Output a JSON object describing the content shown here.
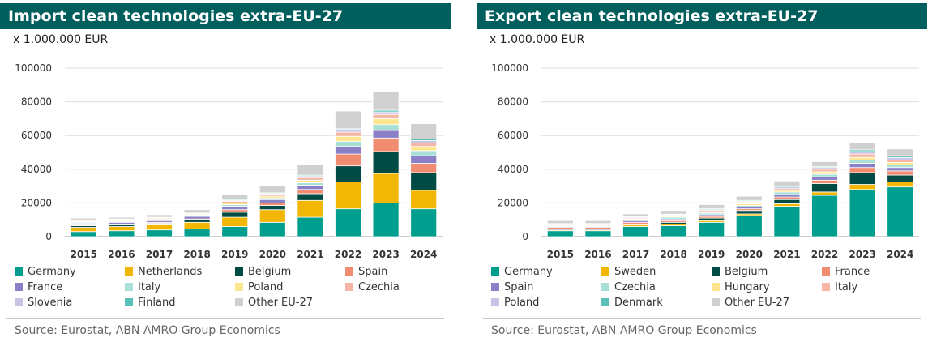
{
  "chart_data": [
    {
      "type": "bar",
      "stacked": true,
      "title": "Import clean technologies extra-EU-27",
      "unit": "x 1.000.000 EUR",
      "source": "Source: Eurostat, ABN AMRO Group Economics",
      "ylim": [
        0,
        100000
      ],
      "yticks": [
        0,
        20000,
        40000,
        60000,
        80000,
        100000
      ],
      "grid": true,
      "legend_position": "bottom",
      "categories": [
        "2015",
        "2016",
        "2017",
        "2018",
        "2019",
        "2020",
        "2021",
        "2022",
        "2023",
        "2024"
      ],
      "series": [
        {
          "name": "Germany",
          "color": "#009e8e",
          "values": [
            3000,
            3500,
            4000,
            4500,
            6000,
            8500,
            11500,
            16500,
            20000,
            16500
          ]
        },
        {
          "name": "Netherlands",
          "color": "#f2b705",
          "values": [
            2500,
            2500,
            3000,
            4000,
            5500,
            7500,
            10000,
            16000,
            17500,
            11000
          ]
        },
        {
          "name": "Belgium",
          "color": "#004c45",
          "values": [
            1000,
            1000,
            1000,
            1500,
            3000,
            2500,
            4000,
            9500,
            13000,
            10500
          ]
        },
        {
          "name": "Spain",
          "color": "#f28c70",
          "values": [
            500,
            500,
            500,
            500,
            1500,
            1500,
            2500,
            7000,
            8000,
            5500
          ]
        },
        {
          "name": "France",
          "color": "#8b7fc7",
          "values": [
            1000,
            1000,
            1000,
            1500,
            2000,
            2000,
            2500,
            4500,
            4500,
            4500
          ]
        },
        {
          "name": "Italy",
          "color": "#a8e0d8",
          "values": [
            500,
            500,
            500,
            500,
            1000,
            1000,
            1500,
            3000,
            3500,
            3000
          ]
        },
        {
          "name": "Poland",
          "color": "#ffe58f",
          "values": [
            500,
            500,
            500,
            500,
            1000,
            1000,
            1500,
            3000,
            3500,
            2500
          ]
        },
        {
          "name": "Czechia",
          "color": "#f4b6a6",
          "values": [
            500,
            500,
            500,
            500,
            1000,
            1000,
            1500,
            2500,
            2500,
            2000
          ]
        },
        {
          "name": "Slovenia",
          "color": "#c9c3e6",
          "values": [
            300,
            300,
            300,
            300,
            500,
            500,
            1000,
            1500,
            1500,
            1500
          ]
        },
        {
          "name": "Finland",
          "color": "#5ac0b8",
          "values": [
            200,
            200,
            200,
            200,
            500,
            500,
            500,
            500,
            1000,
            1000
          ]
        },
        {
          "name": "Other EU-27",
          "color": "#d0d0d0",
          "values": [
            1000,
            1000,
            1500,
            2000,
            3000,
            4500,
            6500,
            10500,
            11000,
            9000
          ]
        }
      ]
    },
    {
      "type": "bar",
      "stacked": true,
      "title": "Export clean technologies extra-EU-27",
      "unit": "x 1.000.000 EUR",
      "source": "Source: Eurostat, ABN AMRO Group Economics",
      "ylim": [
        0,
        100000
      ],
      "yticks": [
        0,
        20000,
        40000,
        60000,
        80000,
        100000
      ],
      "grid": true,
      "legend_position": "bottom",
      "categories": [
        "2015",
        "2016",
        "2017",
        "2018",
        "2019",
        "2020",
        "2021",
        "2022",
        "2023",
        "2024"
      ],
      "series": [
        {
          "name": "Germany",
          "color": "#009e8e",
          "values": [
            3500,
            3500,
            6000,
            6500,
            8500,
            12500,
            18000,
            24500,
            28000,
            29500
          ]
        },
        {
          "name": "Sweden",
          "color": "#f2b705",
          "values": [
            500,
            500,
            1000,
            1000,
            1000,
            1000,
            1500,
            2000,
            3000,
            3000
          ]
        },
        {
          "name": "Belgium",
          "color": "#004c45",
          "values": [
            500,
            500,
            500,
            1000,
            1500,
            2000,
            2500,
            5000,
            7000,
            4000
          ]
        },
        {
          "name": "France",
          "color": "#f28c70",
          "values": [
            1000,
            1000,
            1000,
            1000,
            1000,
            1000,
            1500,
            2000,
            3000,
            2500
          ]
        },
        {
          "name": "Spain",
          "color": "#8b7fc7",
          "values": [
            500,
            500,
            1000,
            1000,
            1000,
            1000,
            1500,
            2000,
            2500,
            2000
          ]
        },
        {
          "name": "Czechia",
          "color": "#a8e0d8",
          "values": [
            500,
            500,
            500,
            1000,
            1000,
            1000,
            1500,
            1500,
            2000,
            1500
          ]
        },
        {
          "name": "Hungary",
          "color": "#ffe58f",
          "values": [
            300,
            300,
            500,
            500,
            500,
            1000,
            1000,
            1500,
            1500,
            1500
          ]
        },
        {
          "name": "Italy",
          "color": "#f4b6a6",
          "values": [
            500,
            500,
            500,
            500,
            1000,
            1000,
            1000,
            1500,
            2000,
            1500
          ]
        },
        {
          "name": "Poland",
          "color": "#c9c3e6",
          "values": [
            300,
            300,
            500,
            500,
            500,
            500,
            1000,
            1000,
            1500,
            1500
          ]
        },
        {
          "name": "Denmark",
          "color": "#5ac0b8",
          "values": [
            200,
            200,
            300,
            300,
            500,
            500,
            500,
            500,
            1000,
            1000
          ]
        },
        {
          "name": "Other EU-27",
          "color": "#d0d0d0",
          "values": [
            1700,
            1700,
            1700,
            2200,
            2500,
            2500,
            3000,
            3000,
            4000,
            4000
          ]
        }
      ]
    }
  ]
}
